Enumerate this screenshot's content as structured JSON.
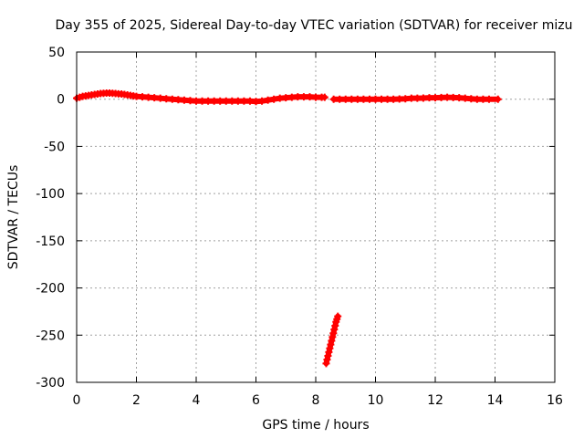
{
  "chart_data": {
    "type": "scatter",
    "title": "Day 355 of 2025, Sidereal Day-to-day VTEC variation (SDTVAR) for receiver mizu",
    "xlabel": "GPS time / hours",
    "ylabel": "SDTVAR / TECUs",
    "xlim": [
      0,
      16
    ],
    "ylim": [
      -300,
      50
    ],
    "xticks": [
      0,
      2,
      4,
      6,
      8,
      10,
      12,
      14,
      16
    ],
    "yticks": [
      -300,
      -250,
      -200,
      -150,
      -100,
      -50,
      0,
      50
    ],
    "grid": true,
    "marker": "plus",
    "color": "#ff0000",
    "series": [
      {
        "name": "SDTVAR",
        "segments": [
          {
            "x": [
              0.0,
              0.1,
              0.2,
              0.3,
              0.4,
              0.5,
              0.6,
              0.7,
              0.8,
              0.9,
              1.0,
              1.1,
              1.2,
              1.3,
              1.4,
              1.5,
              1.6,
              1.7,
              1.8,
              1.9,
              2.0,
              2.2,
              2.4,
              2.6,
              2.8,
              3.0,
              3.2,
              3.4,
              3.6,
              3.8,
              4.0,
              4.2,
              4.4,
              4.6,
              4.8,
              5.0,
              5.2,
              5.4,
              5.6,
              5.8,
              6.0,
              6.2,
              6.4,
              6.6,
              6.8,
              7.0,
              7.2,
              7.4,
              7.6,
              7.8,
              8.0,
              8.2,
              8.3
            ],
            "y": [
              1,
              2,
              3,
              3.5,
              4,
              4.5,
              5,
              5.5,
              6,
              6.3,
              6.5,
              6.5,
              6.3,
              6,
              5.7,
              5.5,
              5,
              4.5,
              4,
              3.5,
              3,
              2.5,
              2,
              1.5,
              1,
              0.5,
              0,
              -0.5,
              -1,
              -1.5,
              -2,
              -2,
              -2,
              -2,
              -2,
              -2,
              -2,
              -2,
              -2,
              -2,
              -2.5,
              -2,
              -1,
              0,
              1,
              1.5,
              2,
              2.5,
              2.5,
              2.5,
              2,
              2,
              2
            ]
          },
          {
            "x": [
              8.6,
              8.8,
              9.0,
              9.2,
              9.4,
              9.6,
              9.8,
              10.0,
              10.2,
              10.4,
              10.6,
              10.8,
              11.0,
              11.2,
              11.4,
              11.6,
              11.8,
              12.0,
              12.2,
              12.4,
              12.6,
              12.8,
              13.0,
              13.2,
              13.4,
              13.6,
              13.8,
              14.1
            ],
            "y": [
              0,
              0,
              0,
              0,
              0,
              0,
              0,
              0,
              0,
              0,
              0,
              0.2,
              0.5,
              1,
              1,
              1.2,
              1.5,
              1.5,
              1.8,
              2,
              1.8,
              1.5,
              1,
              0.5,
              0,
              0,
              0,
              0
            ]
          },
          {
            "x": [
              8.35,
              8.38,
              8.41,
              8.44,
              8.47,
              8.5,
              8.53,
              8.56,
              8.59,
              8.62,
              8.65,
              8.68,
              8.71,
              8.74
            ],
            "y": [
              -280,
              -276,
              -272,
              -268,
              -264,
              -260,
              -256,
              -252,
              -248,
              -244,
              -240,
              -236,
              -233,
              -230
            ]
          }
        ]
      }
    ]
  }
}
